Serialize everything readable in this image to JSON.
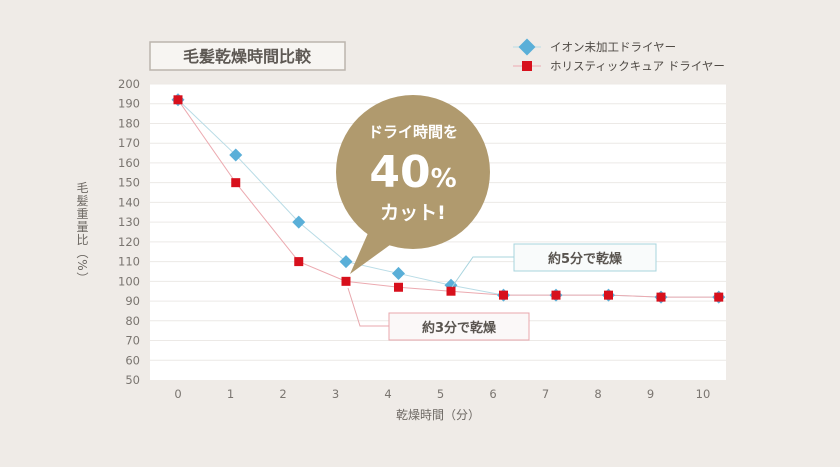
{
  "chart_data": {
    "type": "line",
    "title": "毛髪乾燥時間比較",
    "xlabel": "乾燥時間（分）",
    "ylabel": "毛髪重量比（%）",
    "ylim": [
      50,
      200
    ],
    "xlim": [
      0,
      10
    ],
    "yticks": [
      50,
      60,
      70,
      80,
      90,
      100,
      110,
      120,
      130,
      140,
      150,
      160,
      170,
      180,
      190,
      200
    ],
    "xticks": [
      0,
      1,
      2,
      3,
      4,
      5,
      6,
      7,
      8,
      9,
      10
    ],
    "grid": true,
    "legend_position": "top-right",
    "series": [
      {
        "name": "イオン未加工ドライヤー",
        "marker": "diamond",
        "color": "#5aafd8",
        "line_color": "#b9dce6",
        "points": [
          [
            0,
            192
          ],
          [
            1.1,
            164
          ],
          [
            2.3,
            130
          ],
          [
            3.2,
            110
          ],
          [
            4.2,
            104
          ],
          [
            5.2,
            98
          ],
          [
            6.2,
            93
          ],
          [
            7.2,
            93
          ],
          [
            8.2,
            93
          ],
          [
            9.2,
            92
          ],
          [
            10.3,
            92
          ]
        ]
      },
      {
        "name": "ホリスティックキュア ドライヤー",
        "marker": "square",
        "color": "#d7101c",
        "line_color": "#ecaab0",
        "points": [
          [
            0,
            192
          ],
          [
            1.1,
            150
          ],
          [
            2.3,
            110
          ],
          [
            3.2,
            100
          ],
          [
            4.2,
            97
          ],
          [
            5.2,
            95
          ],
          [
            6.2,
            93
          ],
          [
            7.2,
            93
          ],
          [
            8.2,
            93
          ],
          [
            9.2,
            92
          ],
          [
            10.3,
            92
          ]
        ]
      }
    ],
    "annotations": {
      "callout_ion": "約5分で乾燥",
      "callout_holistic": "約3分で乾燥",
      "bubble_line1": "ドライ時間を",
      "bubble_number": "40",
      "bubble_percent": "%",
      "bubble_line3": "カット!",
      "bubble_color": "#b09a6e"
    }
  }
}
